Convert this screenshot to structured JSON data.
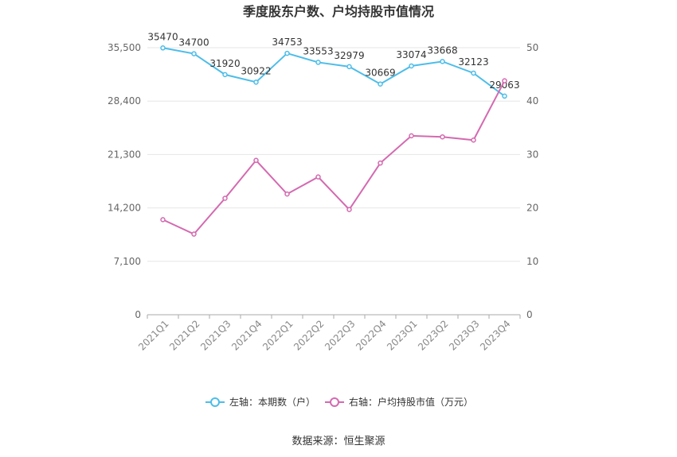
{
  "title": "季度股东户数、户均持股市值情况",
  "source": "数据来源：恒生聚源",
  "chart_data": {
    "type": "line",
    "categories": [
      "2021Q1",
      "2021Q2",
      "2021Q3",
      "2021Q4",
      "2022Q1",
      "2022Q2",
      "2022Q3",
      "2022Q4",
      "2023Q1",
      "2023Q2",
      "2023Q3",
      "2023Q4"
    ],
    "left_axis": {
      "ticks": [
        "0",
        "7,100",
        "14,200",
        "21,300",
        "28,400",
        "35,500"
      ],
      "ylim": [
        0,
        35500
      ]
    },
    "right_axis": {
      "ticks": [
        "0",
        "10",
        "20",
        "30",
        "40",
        "50"
      ],
      "ylim": [
        0,
        50
      ]
    },
    "grid": true,
    "legend_position": "bottom-center",
    "series": [
      {
        "name": "左轴：本期数（户）",
        "axis": "left",
        "color": "#4dbde9",
        "values": [
          35470,
          34700,
          31920,
          30922,
          34753,
          33553,
          32979,
          30669,
          33074,
          33668,
          32123,
          29063
        ],
        "labels": [
          "35470",
          "34700",
          "31920",
          "30922",
          "34753",
          "33553",
          "32979",
          "30669",
          "33074",
          "33668",
          "32123",
          "29063"
        ]
      },
      {
        "name": "右轴：户均持股市值（万元）",
        "axis": "right",
        "color": "#d46ab0",
        "values": [
          17.8,
          15.1,
          21.8,
          28.9,
          22.6,
          25.8,
          19.7,
          28.4,
          33.5,
          33.3,
          32.7,
          43.8
        ]
      }
    ]
  }
}
